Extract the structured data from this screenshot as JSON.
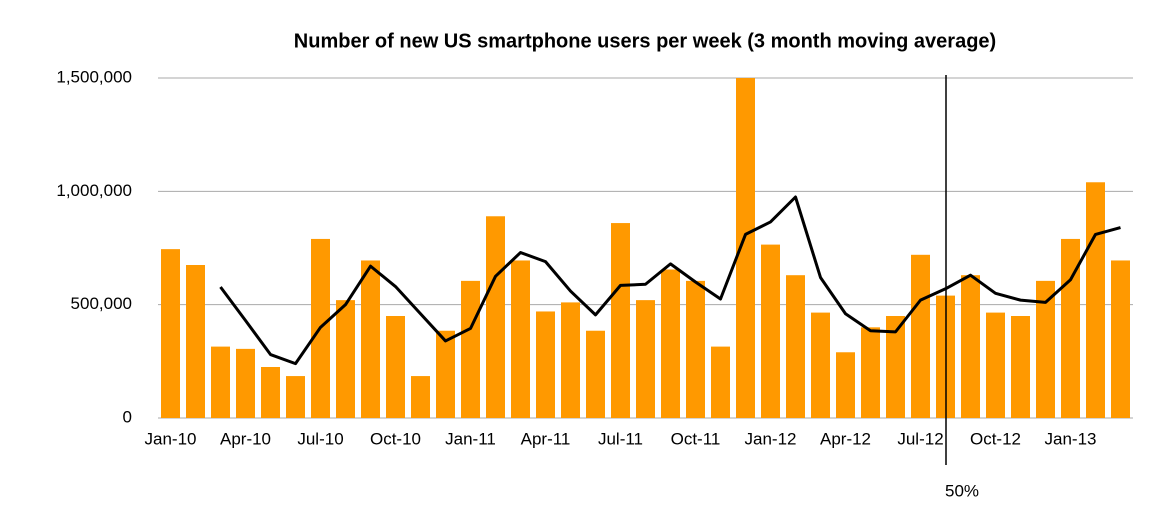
{
  "chart_data": {
    "type": "bar",
    "title": "Number of new US smartphone users per week (3 month moving average)",
    "categories": [
      "Jan-10",
      null,
      null,
      "Apr-10",
      null,
      null,
      "Jul-10",
      null,
      null,
      "Oct-10",
      null,
      null,
      "Jan-11",
      null,
      null,
      "Apr-11",
      null,
      null,
      "Jul-11",
      null,
      null,
      "Oct-11",
      null,
      null,
      "Jan-12",
      null,
      null,
      "Apr-12",
      null,
      null,
      "Jul-12",
      null,
      null,
      "Oct-12",
      null,
      null,
      "Jan-13",
      null,
      null
    ],
    "series": [
      {
        "type": "bar",
        "color": "#ff9900",
        "values": [
          745000,
          675000,
          315000,
          305000,
          225000,
          185000,
          790000,
          520000,
          695000,
          450000,
          185000,
          385000,
          605000,
          890000,
          695000,
          470000,
          510000,
          385000,
          860000,
          520000,
          655000,
          605000,
          315000,
          1500000,
          765000,
          630000,
          465000,
          290000,
          400000,
          450000,
          720000,
          540000,
          630000,
          465000,
          450000,
          605000,
          790000,
          1040000,
          695000
        ]
      },
      {
        "type": "line",
        "color": "#000000",
        "values": [
          null,
          null,
          578000,
          430000,
          280000,
          240000,
          400000,
          500000,
          670000,
          580000,
          460000,
          340000,
          395000,
          625000,
          730000,
          690000,
          560000,
          455000,
          585000,
          590000,
          680000,
          600000,
          525000,
          810000,
          865000,
          975000,
          620000,
          460000,
          385000,
          380000,
          520000,
          570000,
          630000,
          550000,
          520000,
          510000,
          610000,
          810000,
          840000
        ]
      }
    ],
    "ylim": [
      0,
      1500000
    ],
    "yticks": [
      0,
      {
        "value": 500000,
        "label": "500,000"
      },
      {
        "value": 1000000,
        "label": "1,000,000"
      },
      {
        "value": 1500000,
        "label": "1,500,000"
      }
    ],
    "grid": true,
    "annotations": [
      {
        "text": "50%"
      }
    ]
  }
}
